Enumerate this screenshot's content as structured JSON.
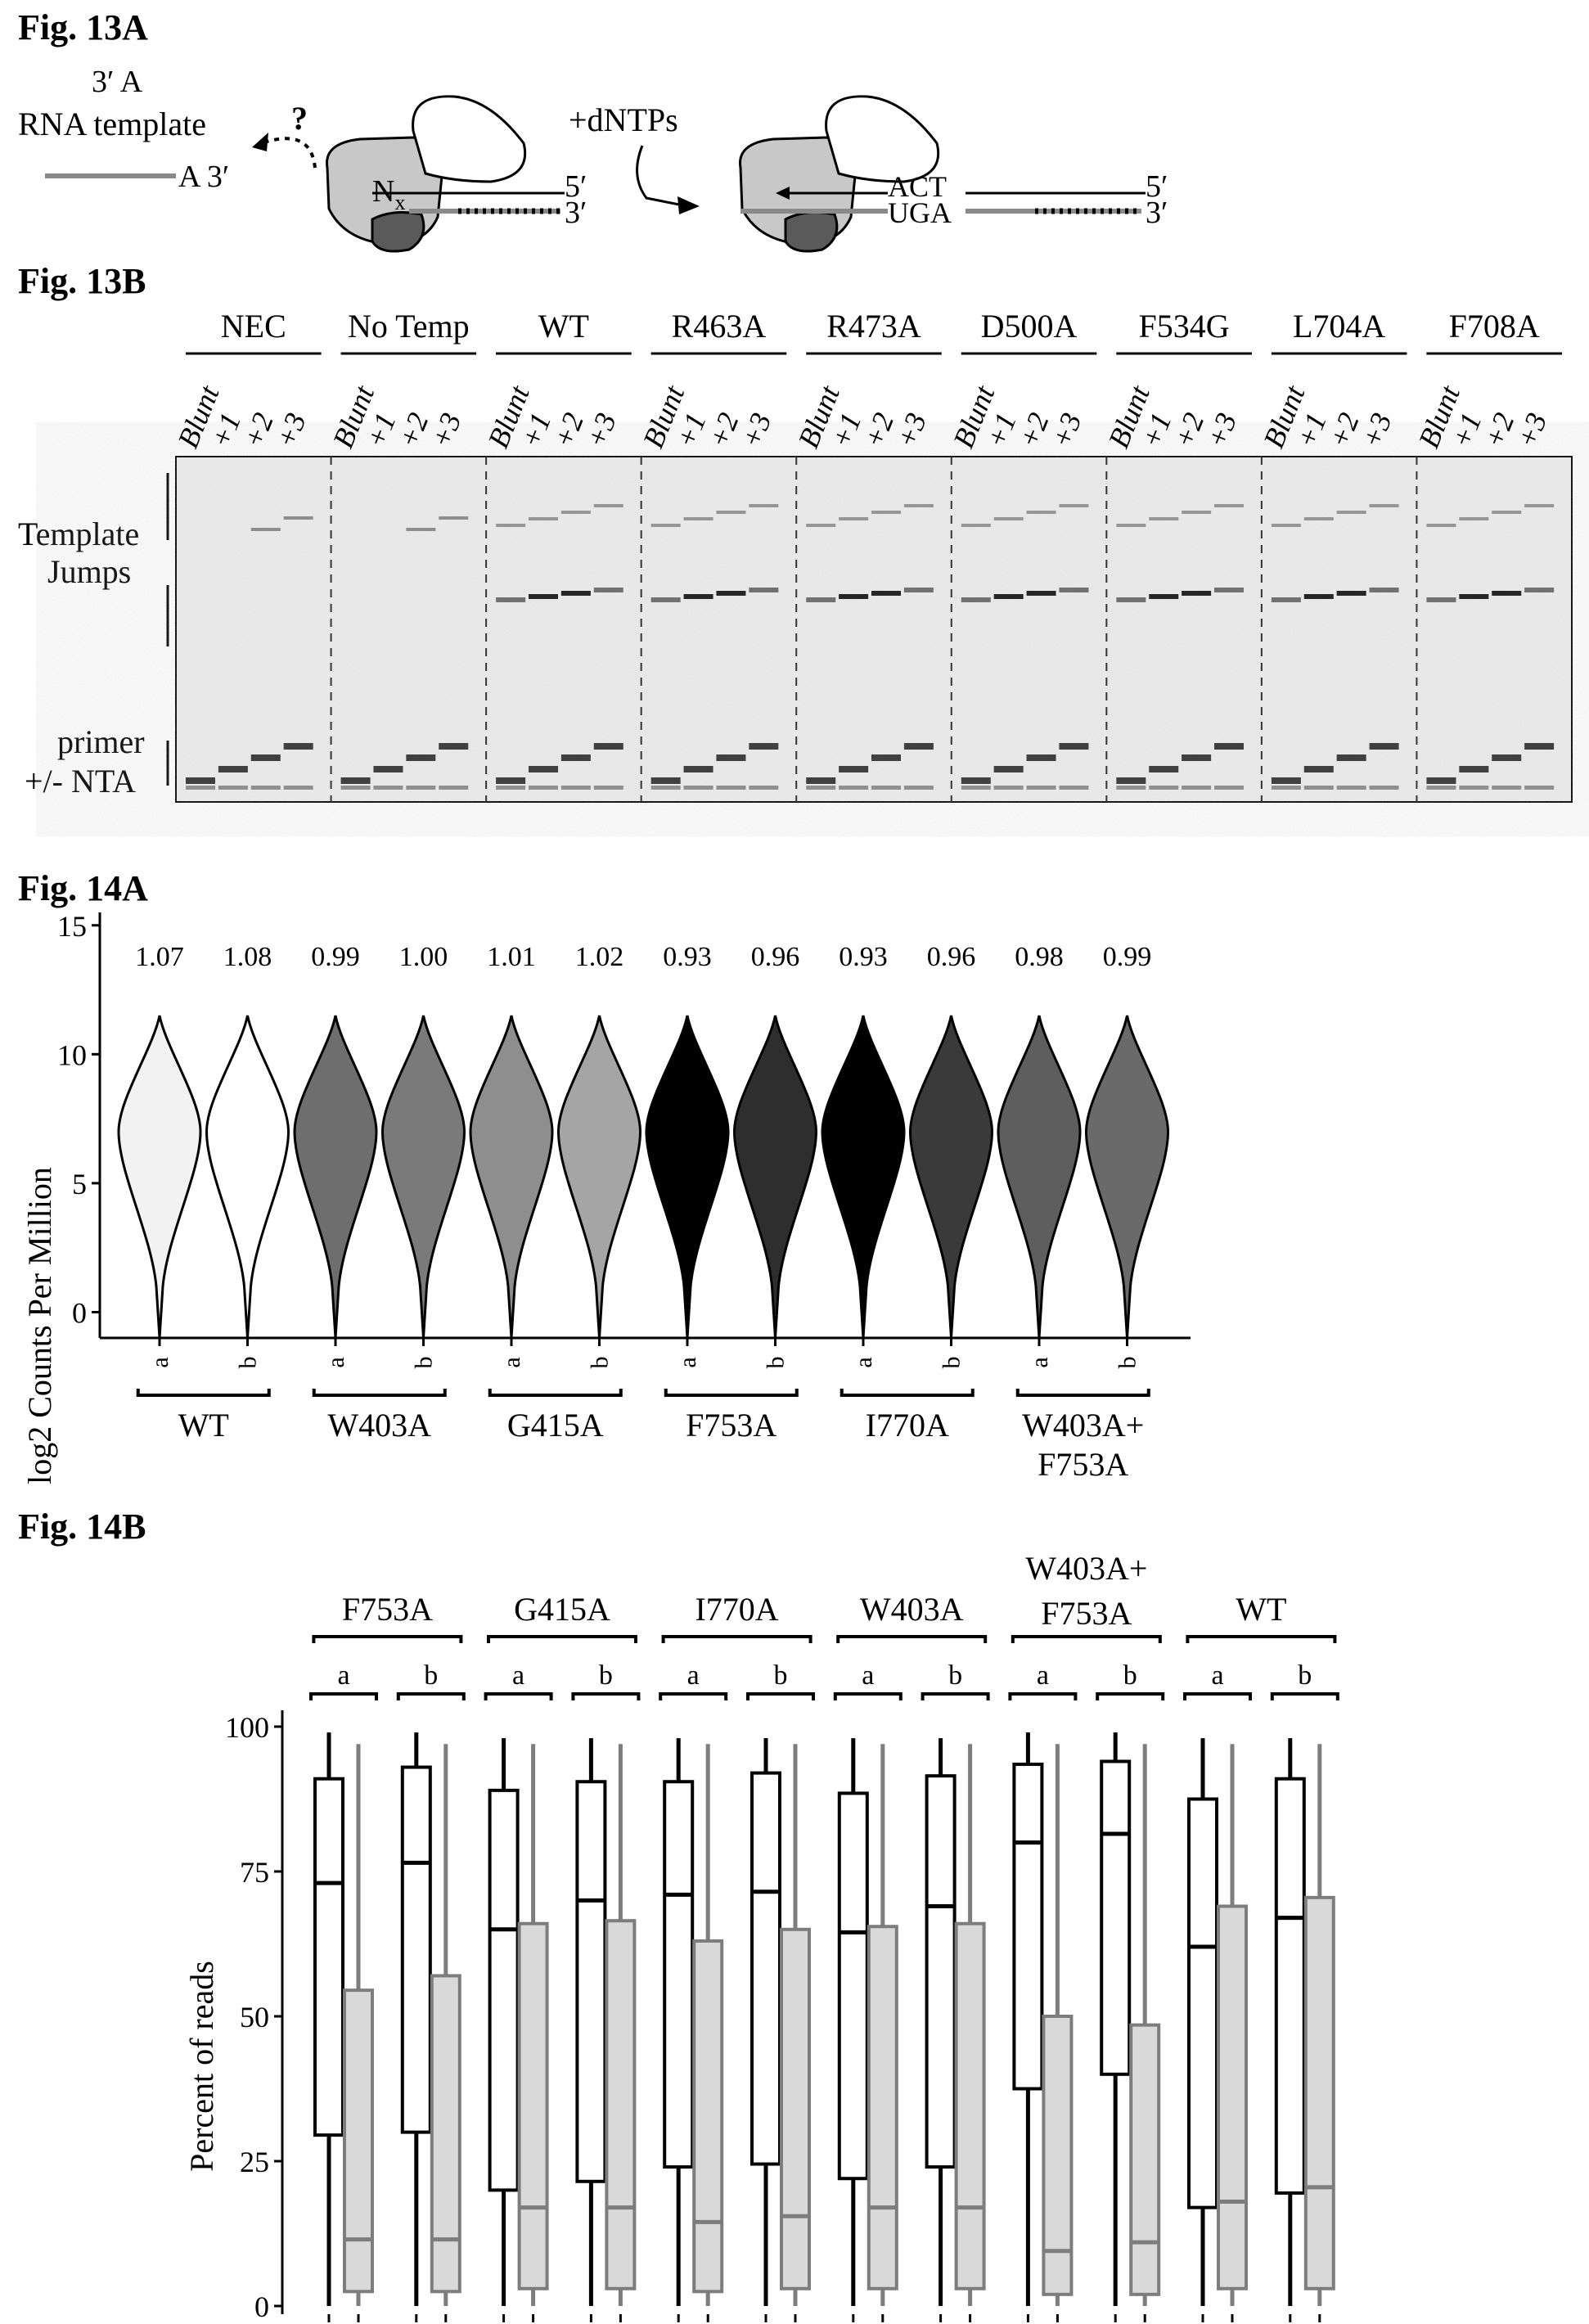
{
  "fig13a": {
    "label": "Fig. 13A",
    "rna_label": "RNA template",
    "three_prime_A": "3′ A",
    "a_three": "A 3′",
    "question": "?",
    "nx": "N",
    "nx_sub": "x",
    "five_prime": "5′",
    "three_prime": "3′",
    "dntps": "+dNTPs",
    "act": "ACT",
    "uga": "UGA"
  },
  "fig13b": {
    "label": "Fig. 13B",
    "groups": [
      "NEC",
      "No Temp",
      "WT",
      "R463A",
      "R473A",
      "D500A",
      "F534G",
      "L704A",
      "F708A"
    ],
    "lanes": [
      "Blunt",
      "+1",
      "+2",
      "+3"
    ],
    "left_labels": {
      "template": "Template",
      "jumps": "Jumps",
      "primer": "primer",
      "nta": "+/- NTA"
    }
  },
  "fig14a": {
    "label": "Fig. 14A",
    "chart_data": {
      "type": "violin",
      "ylabel": "log2 Counts Per Million",
      "ylim": [
        -1,
        15.5
      ],
      "yticks": [
        0,
        5,
        10,
        15
      ],
      "replicates": [
        "a",
        "b",
        "a",
        "b",
        "a",
        "b",
        "a",
        "b",
        "a",
        "b",
        "a",
        "b"
      ],
      "groups": [
        "WT",
        "W403A",
        "G415A",
        "F753A",
        "I770A",
        "W403A+",
        "F753A"
      ],
      "values": [
        1.07,
        1.08,
        0.99,
        1.0,
        1.01,
        1.02,
        0.93,
        0.96,
        0.93,
        0.96,
        0.98,
        0.99
      ],
      "value_labels": [
        "1.07",
        "1.08",
        "0.99",
        "1.00",
        "1.01",
        "1.02",
        "0.93",
        "0.96",
        "0.93",
        "0.96",
        "0.98",
        "0.99"
      ],
      "fills": [
        "#f2f2f2",
        "#ffffff",
        "#6e6e6e",
        "#7a7a7a",
        "#8e8e8e",
        "#a5a5a5",
        "#000000",
        "#2e2e2e",
        "#000000",
        "#3a3a3a",
        "#5e5e5e",
        "#6a6a6a"
      ]
    }
  },
  "fig14b": {
    "label": "Fig. 14B",
    "chart_data": {
      "type": "box",
      "ylabel": "Percent of reads",
      "ylim": [
        0,
        100
      ],
      "yticks": [
        0,
        25,
        50,
        75,
        100
      ],
      "groups": [
        "F753A",
        "G415A",
        "I770A",
        "W403A",
        "W403A+",
        "F753A",
        "WT"
      ],
      "replicates": [
        "a",
        "b",
        "a",
        "b",
        "a",
        "b",
        "a",
        "b",
        "a",
        "b",
        "a",
        "b"
      ],
      "series": [
        {
          "fill": "#ffffff",
          "stroke": "#000000",
          "boxes": [
            {
              "min": 0,
              "q1": 29.5,
              "median": 73,
              "q3": 91,
              "max": 99
            },
            {
              "min": 0,
              "q1": 30,
              "median": 76.5,
              "q3": 93,
              "max": 99
            },
            {
              "min": 0,
              "q1": 20,
              "median": 65,
              "q3": 89,
              "max": 98
            },
            {
              "min": 0,
              "q1": 21.5,
              "median": 70,
              "q3": 90.5,
              "max": 98
            },
            {
              "min": 0,
              "q1": 24,
              "median": 71,
              "q3": 90.5,
              "max": 98
            },
            {
              "min": 0,
              "q1": 24.5,
              "median": 71.5,
              "q3": 92,
              "max": 98
            },
            {
              "min": 0,
              "q1": 22,
              "median": 64.5,
              "q3": 88.5,
              "max": 98
            },
            {
              "min": 0,
              "q1": 24,
              "median": 69,
              "q3": 91.5,
              "max": 98
            },
            {
              "min": 0,
              "q1": 37.5,
              "median": 80,
              "q3": 93.5,
              "max": 99
            },
            {
              "min": 0,
              "q1": 40,
              "median": 81.5,
              "q3": 94,
              "max": 99
            },
            {
              "min": 0,
              "q1": 17,
              "median": 62,
              "q3": 87.5,
              "max": 98
            },
            {
              "min": 0,
              "q1": 19.5,
              "median": 67,
              "q3": 91,
              "max": 98
            }
          ]
        },
        {
          "fill": "#d9d9d9",
          "stroke": "#7d7d7d",
          "boxes": [
            {
              "min": 0,
              "q1": 2.5,
              "median": 11.5,
              "q3": 54.5,
              "max": 97
            },
            {
              "min": 0,
              "q1": 2.5,
              "median": 11.5,
              "q3": 57,
              "max": 97
            },
            {
              "min": 0,
              "q1": 3,
              "median": 17,
              "q3": 66,
              "max": 97
            },
            {
              "min": 0,
              "q1": 3,
              "median": 17,
              "q3": 66.5,
              "max": 97
            },
            {
              "min": 0,
              "q1": 2.5,
              "median": 14.5,
              "q3": 63,
              "max": 97
            },
            {
              "min": 0,
              "q1": 3,
              "median": 15.5,
              "q3": 65,
              "max": 97
            },
            {
              "min": 0,
              "q1": 3,
              "median": 17,
              "q3": 65.5,
              "max": 97
            },
            {
              "min": 0,
              "q1": 3,
              "median": 17,
              "q3": 66,
              "max": 97
            },
            {
              "min": 0,
              "q1": 2,
              "median": 9.5,
              "q3": 50,
              "max": 97
            },
            {
              "min": 0,
              "q1": 2,
              "median": 11,
              "q3": 48.5,
              "max": 97
            },
            {
              "min": 0,
              "q1": 3,
              "median": 18,
              "q3": 69,
              "max": 97
            },
            {
              "min": 0,
              "q1": 3,
              "median": 20.5,
              "q3": 70.5,
              "max": 97
            }
          ]
        }
      ]
    }
  }
}
